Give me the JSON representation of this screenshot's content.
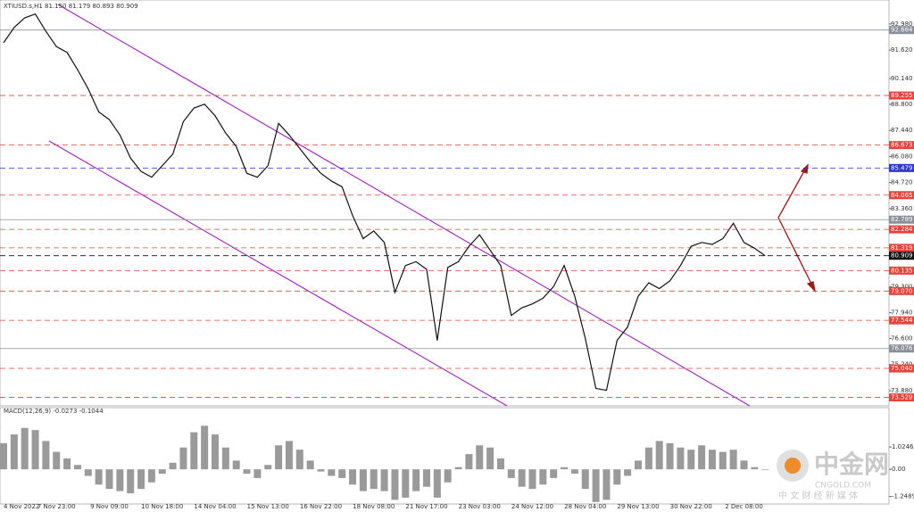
{
  "chart_data": {
    "type": "line",
    "title": "XTIUSD.s,H1  81.150 81.179 80.893 80.909",
    "categories": [
      "4 Nov 2022",
      null,
      null,
      null,
      null,
      "7 Nov 23:00",
      null,
      null,
      null,
      null,
      "9 Nov 09:00",
      null,
      null,
      null,
      null,
      "10 Nov 18:00",
      null,
      null,
      null,
      null,
      "14 Nov 04:00",
      null,
      null,
      null,
      null,
      "15 Nov 13:00",
      null,
      null,
      null,
      null,
      "16 Nov 22:00",
      null,
      null,
      null,
      null,
      "18 Nov 08:00",
      null,
      null,
      null,
      null,
      "21 Nov 17:00",
      null,
      null,
      null,
      null,
      "23 Nov 03:00",
      null,
      null,
      null,
      null,
      "24 Nov 12:00",
      null,
      null,
      null,
      null,
      "28 Nov 04:00",
      null,
      null,
      null,
      null,
      "29 Nov 13:00",
      null,
      null,
      null,
      null,
      "30 Nov 22:00",
      null,
      null,
      null,
      null,
      "2 Dec 08:00",
      null,
      null
    ],
    "values": [
      92.0,
      92.8,
      93.3,
      93.5,
      92.6,
      91.8,
      91.5,
      90.6,
      89.6,
      88.4,
      88.0,
      87.2,
      86.0,
      85.3,
      85.0,
      85.6,
      86.2,
      87.9,
      88.6,
      88.8,
      88.2,
      87.3,
      86.6,
      85.2,
      85.0,
      85.6,
      87.8,
      87.2,
      86.5,
      85.8,
      85.2,
      84.8,
      84.5,
      83.0,
      81.8,
      82.2,
      81.6,
      79.0,
      80.4,
      80.6,
      80.2,
      76.5,
      80.3,
      80.6,
      81.4,
      82.0,
      81.2,
      80.4,
      77.8,
      78.2,
      78.4,
      78.7,
      79.3,
      80.4,
      78.8,
      76.6,
      74.0,
      73.9,
      76.5,
      77.2,
      78.8,
      79.5,
      79.2,
      79.6,
      80.4,
      81.4,
      81.6,
      81.5,
      81.8,
      82.6,
      81.6,
      81.3,
      80.909
    ],
    "color": "#111111",
    "ylim": [
      73.09,
      94.23
    ],
    "yticks": [
      {
        "value": 92.98,
        "label": "92.980"
      },
      {
        "value": 91.62,
        "label": "91.620"
      },
      {
        "value": 90.14,
        "label": "90.140"
      },
      {
        "value": 88.8,
        "label": "88.800"
      },
      {
        "value": 87.44,
        "label": "87.440"
      },
      {
        "value": 86.08,
        "label": "86.080"
      },
      {
        "value": 84.72,
        "label": "84.720"
      },
      {
        "value": 83.36,
        "label": "83.360"
      },
      {
        "value": 79.3,
        "label": "79.300"
      },
      {
        "value": 77.94,
        "label": "77.940"
      },
      {
        "value": 76.6,
        "label": "76.600"
      },
      {
        "value": 75.24,
        "label": "75.240"
      },
      {
        "value": 73.88,
        "label": "73.880"
      }
    ],
    "levels": [
      {
        "value": 92.664,
        "color": "#8a8f99"
      },
      {
        "value": 89.255,
        "color": "#e8433a"
      },
      {
        "value": 86.673,
        "color": "#e8433a"
      },
      {
        "value": 85.479,
        "color": "#2b36c9"
      },
      {
        "value": 84.065,
        "color": "#e8433a"
      },
      {
        "value": 82.789,
        "color": "#8a8f99"
      },
      {
        "value": 82.284,
        "color": "#e8433a"
      },
      {
        "value": 81.319,
        "color": "#e8433a"
      },
      {
        "value": 80.909,
        "color": "#111111"
      },
      {
        "value": 80.135,
        "color": "#e8433a"
      },
      {
        "value": {
          "value": 79.07,
          "label": "79.070"
        },
        "color": "#e8433a"
      },
      {
        "value": 77.544,
        "color": "#e8433a"
      },
      {
        "value": 76.076,
        "color": "#8a8f99"
      },
      {
        "value": {
          "value": 75.04,
          "label": "75.040"
        },
        "color": "#e8433a"
      },
      {
        "value": 73.529,
        "color": "#e8433a"
      }
    ],
    "macd": {
      "title": "MACD(12,26,9) -0.0273 -0.1044",
      "color": "#9a9a9a",
      "ylim": [
        -1.59,
        2.83
      ],
      "yticks": [
        1.0246,
        {
          "value": 0,
          "label": "0.00"
        },
        -1.2489
      ],
      "values": [
        1.2,
        1.6,
        1.9,
        1.8,
        1.3,
        0.8,
        0.5,
        0.2,
        -0.3,
        -0.7,
        -0.9,
        -1.0,
        -1.1,
        -0.9,
        -0.6,
        -0.2,
        0.3,
        1.0,
        1.7,
        2.0,
        1.6,
        1.0,
        0.4,
        -0.2,
        -0.4,
        0.2,
        1.1,
        1.3,
        0.9,
        0.4,
        -0.1,
        -0.3,
        -0.4,
        -0.7,
        -1.0,
        -0.9,
        -1.0,
        -1.4,
        -1.3,
        -1.0,
        -0.8,
        -1.3,
        -0.6,
        0.1,
        0.7,
        1.1,
        1.0,
        0.5,
        -0.4,
        -0.8,
        -0.9,
        -0.7,
        -0.4,
        0.1,
        -0.2,
        -0.9,
        -1.5,
        -1.4,
        -0.7,
        -0.3,
        0.4,
        1.0,
        1.3,
        1.2,
        1.0,
        0.9,
        1.1,
        0.9,
        0.8,
        0.9,
        0.4,
        0.1,
        -0.0273
      ]
    }
  },
  "watermark": {
    "name": "中金网",
    "site": "CNGOLD.COM",
    "tagline": "中 文 财 经 新 媒 体"
  }
}
